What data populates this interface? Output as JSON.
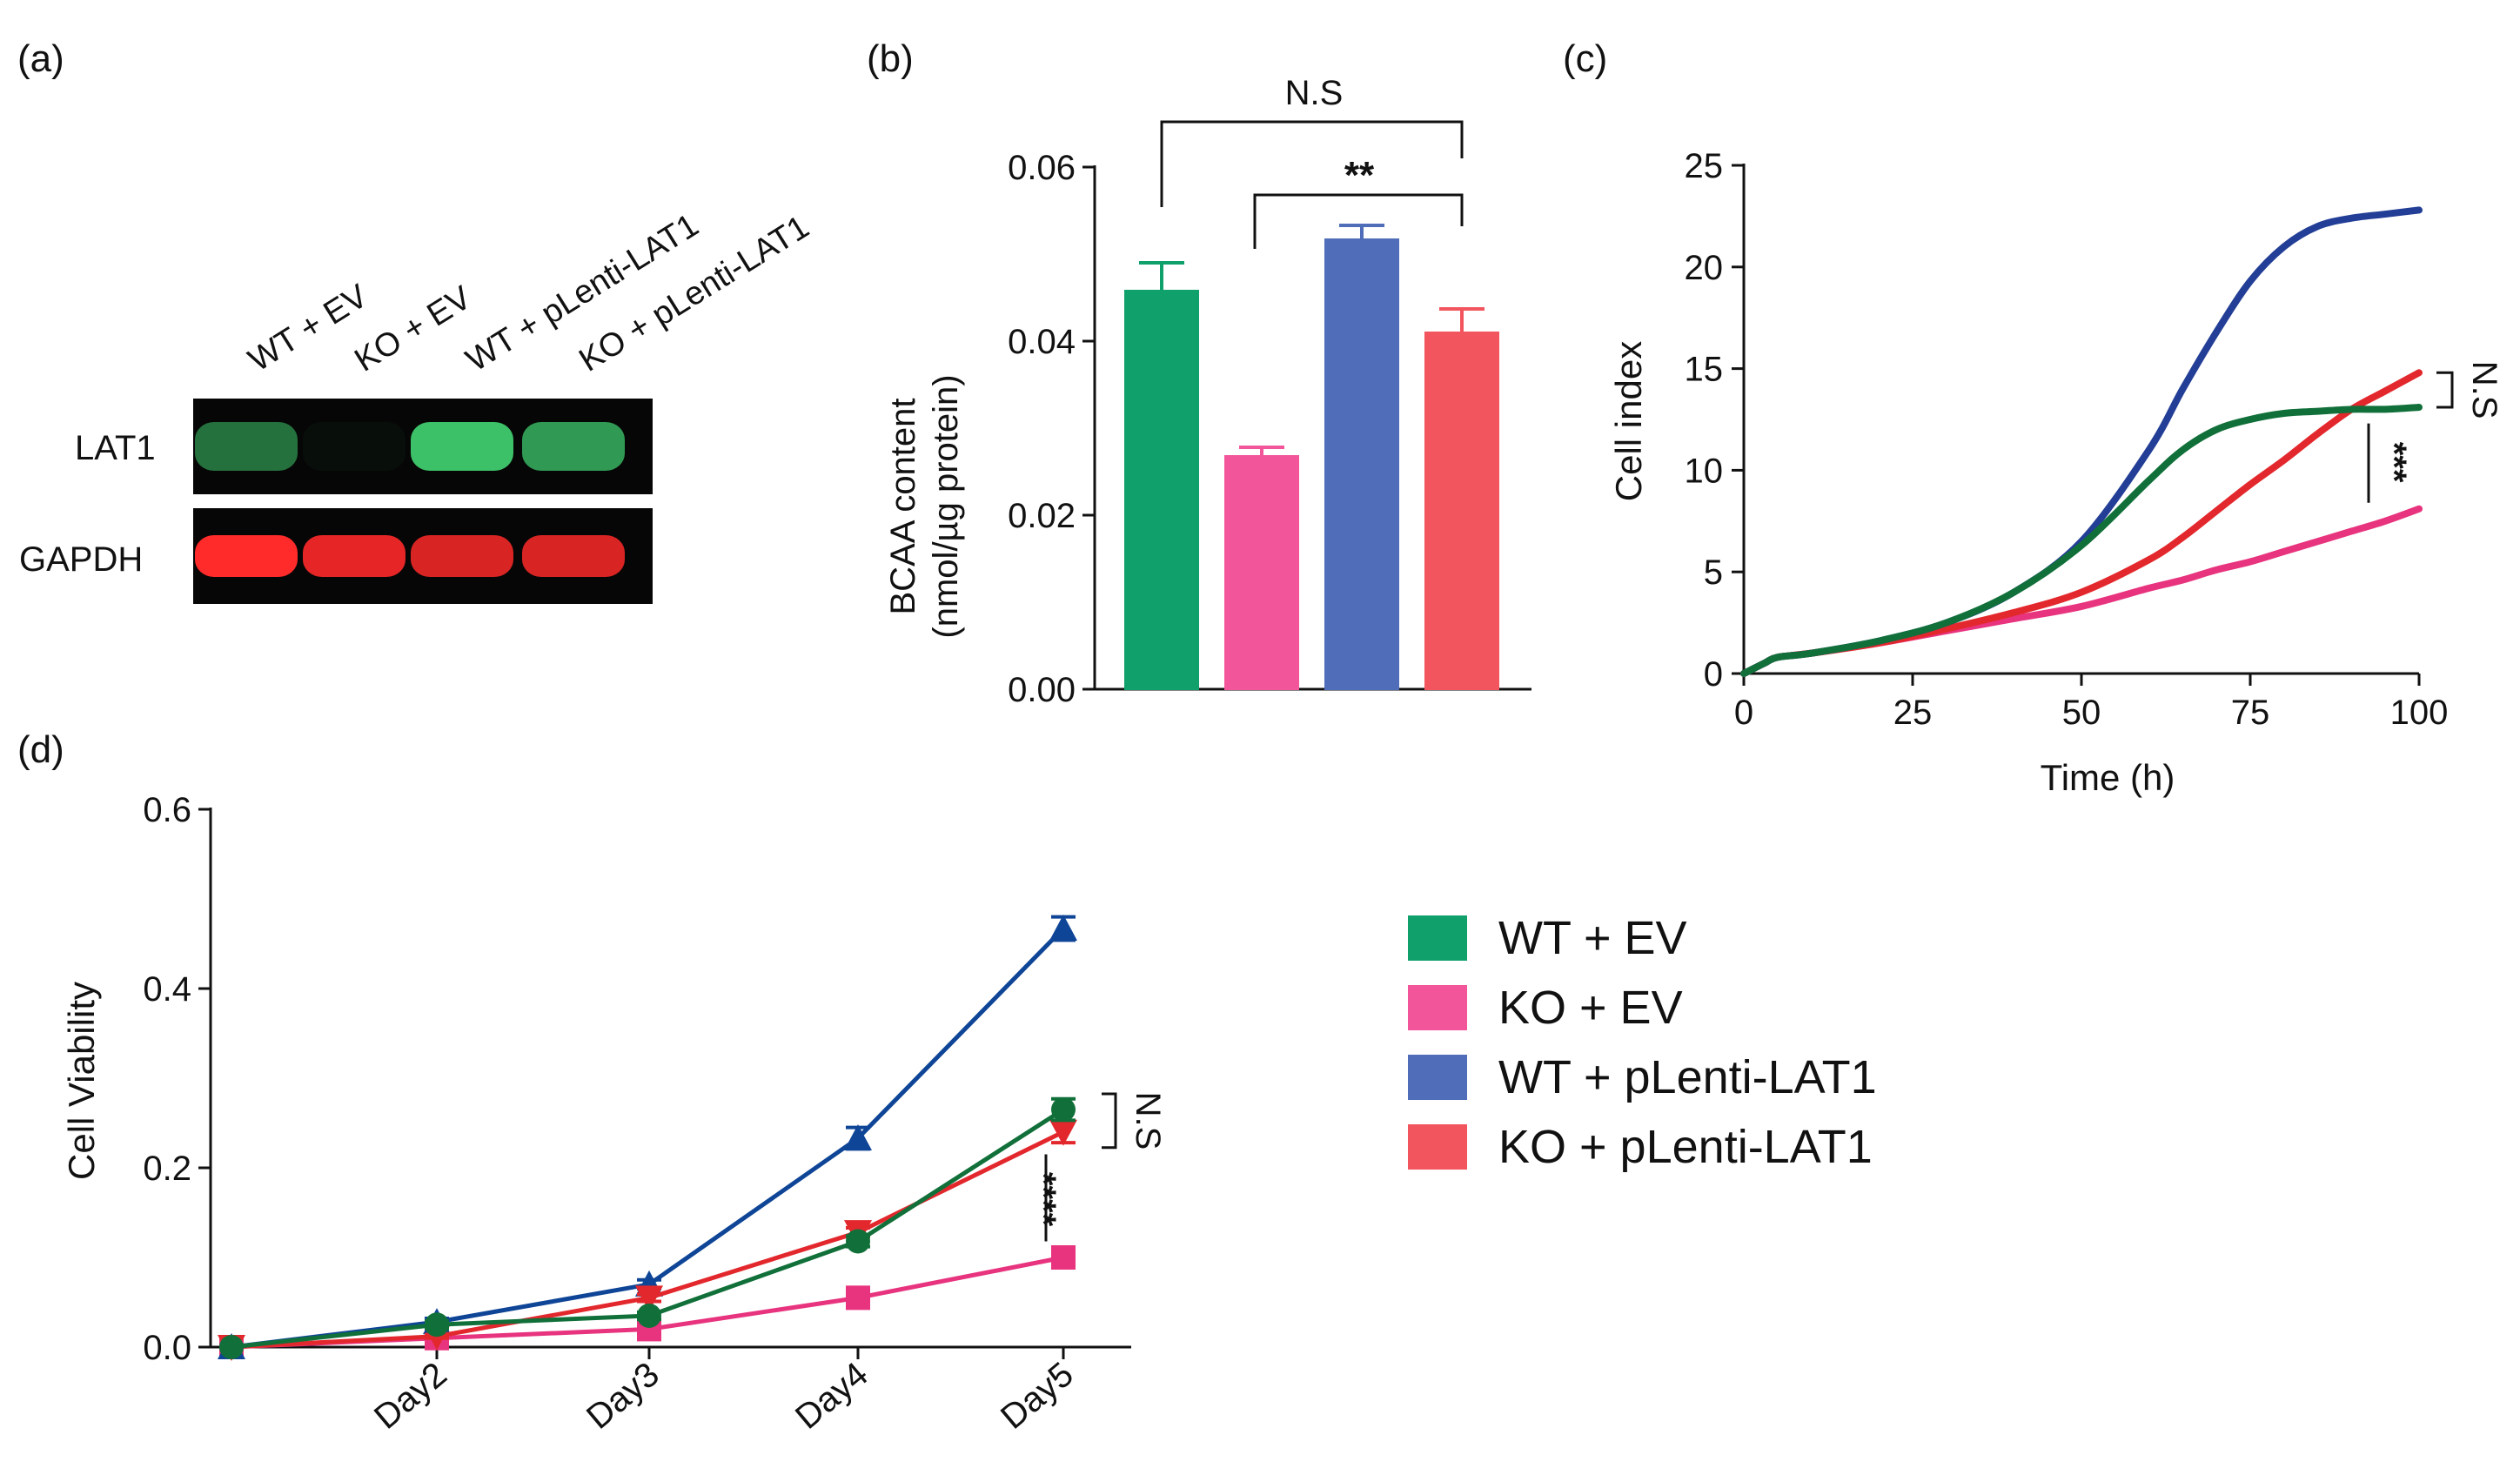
{
  "panel_labels": [
    "(a)",
    "(b)",
    "(c)",
    "(d)"
  ],
  "colors": {
    "wt_ev": "#10A06B",
    "ko_ev": "#F2559A",
    "wt_plenti": "#4F6DB8",
    "ko_plenti": "#F2555D",
    "line_wt_ev": "#11703A",
    "line_ko_ev": "#E8337E",
    "line_wt_plenti": "#233E96",
    "line_ko_plenti": "#E3282D",
    "d_wt_plenti": "#0F4596",
    "blot_green": "#3FCB6E",
    "blot_red": "#FF2A2A"
  },
  "legend": {
    "items": [
      {
        "label": "WT + EV",
        "color": "#10A06B"
      },
      {
        "label": "KO + EV",
        "color": "#F2559A"
      },
      {
        "label": "WT + pLenti-LAT1",
        "color": "#4F6DB8"
      },
      {
        "label": "KO + pLenti-LAT1",
        "color": "#F2555D"
      }
    ]
  },
  "western_blot": {
    "lanes": [
      "WT + EV",
      "KO + EV",
      "WT + pLenti-LAT1",
      "KO + pLenti-LAT1"
    ],
    "rows": [
      {
        "label": "LAT1",
        "color": "#3FCB6E",
        "intensity": [
          0.55,
          0.05,
          0.95,
          0.75
        ]
      },
      {
        "label": "GAPDH",
        "color": "#FF2A2A",
        "intensity": [
          1.0,
          0.9,
          0.85,
          0.85
        ]
      }
    ]
  },
  "chart_data": [
    {
      "panel": "(b)",
      "type": "bar",
      "title": "",
      "ylabel_line1": "BCAA content",
      "ylabel_line2": "(nmol/µg protein)",
      "xlabel": "",
      "ylim": [
        0,
        0.06
      ],
      "yticks": [
        "0.00",
        "0.02",
        "0.04",
        "0.06"
      ],
      "categories": [
        "WT + EV",
        "KO + EV",
        "WT + pLenti-LAT1",
        "KO + pLenti-LAT1"
      ],
      "values": [
        0.0458,
        0.0268,
        0.0517,
        0.041
      ],
      "errors": [
        0.0032,
        0.001,
        0.0016,
        0.0027
      ],
      "annotations": [
        "N.S",
        "**"
      ]
    },
    {
      "panel": "(c)",
      "type": "line",
      "xlabel": "Time (h)",
      "ylabel": "Cell index",
      "xlim": [
        0,
        100
      ],
      "ylim": [
        0,
        25
      ],
      "xticks": [
        "0",
        "25",
        "50",
        "75",
        "100"
      ],
      "yticks": [
        "0",
        "5",
        "10",
        "15",
        "20",
        "25"
      ],
      "x": [
        0,
        3,
        5,
        10,
        20,
        30,
        40,
        50,
        60,
        65,
        70,
        75,
        80,
        85,
        90,
        95,
        100
      ],
      "series": [
        {
          "name": "WT + EV",
          "values": [
            0,
            0.5,
            0.8,
            1.0,
            1.6,
            2.5,
            4.0,
            6.3,
            9.5,
            11.0,
            12.0,
            12.5,
            12.8,
            12.9,
            13.0,
            13.0,
            13.1
          ]
        },
        {
          "name": "KO + EV",
          "values": [
            0,
            0.5,
            0.8,
            1.0,
            1.5,
            2.1,
            2.7,
            3.3,
            4.2,
            4.6,
            5.1,
            5.5,
            6.0,
            6.5,
            7.0,
            7.5,
            8.1
          ]
        },
        {
          "name": "WT + pLenti-LAT1",
          "values": [
            0,
            0.5,
            0.8,
            1.0,
            1.6,
            2.5,
            4.0,
            6.5,
            11.0,
            14.0,
            16.8,
            19.3,
            21.0,
            22.0,
            22.4,
            22.6,
            22.8
          ]
        },
        {
          "name": "KO + pLenti-LAT1",
          "values": [
            0,
            0.5,
            0.8,
            1.0,
            1.5,
            2.2,
            3.0,
            4.0,
            5.6,
            6.7,
            8.0,
            9.3,
            10.5,
            11.8,
            13.0,
            13.9,
            14.8
          ]
        }
      ],
      "annotations": [
        "N.S",
        "***"
      ]
    },
    {
      "panel": "(d)",
      "type": "line",
      "xlabel": "",
      "ylabel": "Cell Viability",
      "ylim": [
        0,
        0.6
      ],
      "yticks": [
        "0.0",
        "0.2",
        "0.4",
        "0.6"
      ],
      "categories": [
        "",
        "Day2",
        "Day3",
        "Day4",
        "Day5"
      ],
      "series": [
        {
          "name": "WT + EV",
          "values": [
            0.0,
            0.025,
            0.035,
            0.118,
            0.265
          ],
          "errors": [
            0,
            0.004,
            0.004,
            0.006,
            0.012
          ]
        },
        {
          "name": "KO + EV",
          "values": [
            0.0,
            0.01,
            0.02,
            0.055,
            0.1
          ],
          "errors": [
            0,
            0.002,
            0.002,
            0.004,
            0.005
          ]
        },
        {
          "name": "WT + pLenti-LAT1",
          "values": [
            0.0,
            0.028,
            0.07,
            0.233,
            0.467
          ],
          "errors": [
            0,
            0.004,
            0.005,
            0.012,
            0.013
          ]
        },
        {
          "name": "KO + pLenti-LAT1",
          "values": [
            0.0,
            0.012,
            0.055,
            0.128,
            0.24
          ],
          "errors": [
            0,
            0.002,
            0.004,
            0.005,
            0.012
          ]
        }
      ],
      "annotations": [
        "N.S",
        "****"
      ]
    }
  ]
}
